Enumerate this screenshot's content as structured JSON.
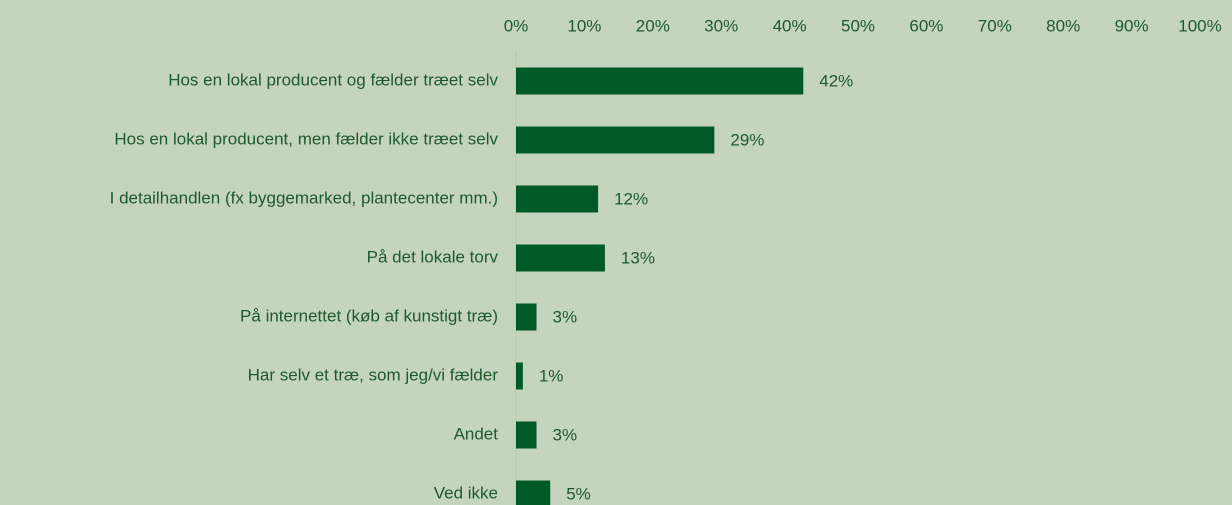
{
  "chart_data": {
    "type": "bar",
    "orientation": "horizontal",
    "categories": [
      "Hos en lokal producent og fælder træet selv",
      "Hos en lokal producent, men fælder ikke træet selv",
      "I detailhandlen (fx byggemarked, plantecenter mm.)",
      "På det lokale torv",
      "På internettet (køb af kunstigt træ)",
      "Har selv et træ, som jeg/vi fælder",
      "Andet",
      "Ved ikke"
    ],
    "values": [
      42,
      29,
      12,
      13,
      3,
      1,
      3,
      5
    ],
    "value_labels": [
      "42%",
      "29%",
      "12%",
      "13%",
      "3%",
      "1%",
      "3%",
      "5%"
    ],
    "color": "#005a25",
    "xlim": [
      0,
      100
    ],
    "xticks": [
      {
        "value": 0,
        "label": "0%"
      },
      {
        "value": 10,
        "label": "10%"
      },
      {
        "value": 20,
        "label": "20%"
      },
      {
        "value": 30,
        "label": "30%"
      },
      {
        "value": 40,
        "label": "40%"
      },
      {
        "value": 50,
        "label": "50%"
      },
      {
        "value": 60,
        "label": "60%"
      },
      {
        "value": 70,
        "label": "70%"
      },
      {
        "value": 80,
        "label": "80%"
      },
      {
        "value": 90,
        "label": "90%"
      },
      {
        "value": 100,
        "label": "100%"
      }
    ]
  }
}
